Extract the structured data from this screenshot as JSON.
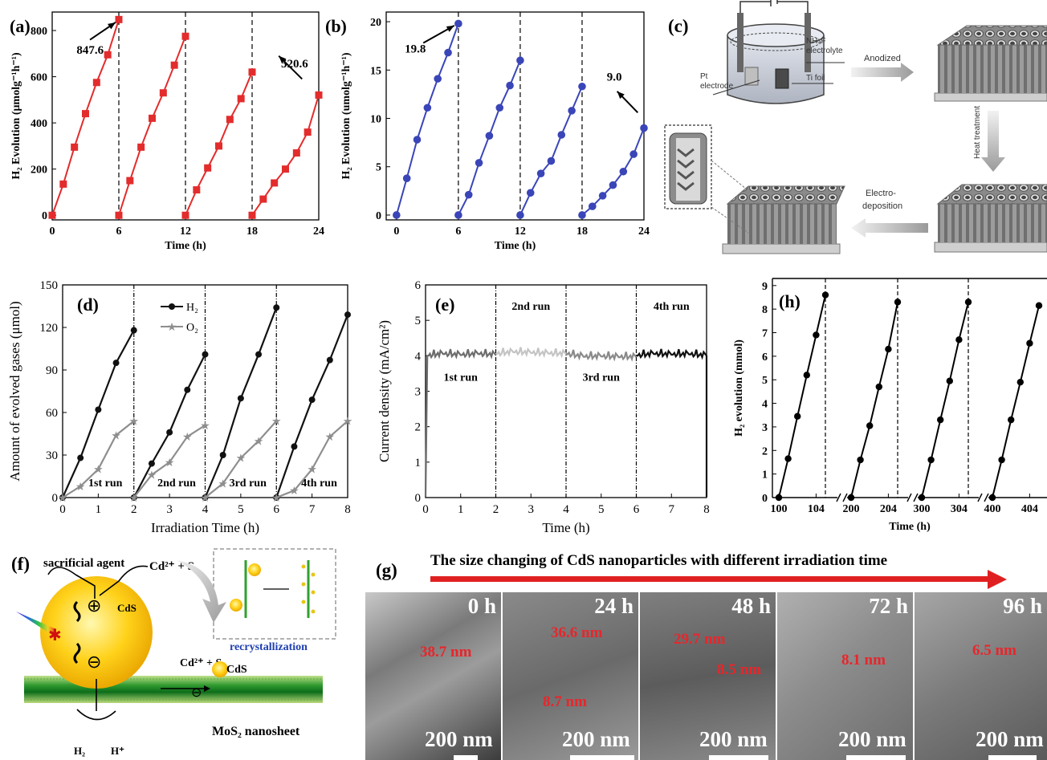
{
  "colors": {
    "red": "#e32c2c",
    "blue": "#3a45b8",
    "black": "#111111",
    "gray": "#8e8e8e",
    "arrow_red": "#e02020",
    "ink": "#000000"
  },
  "chart_data": [
    {
      "id": "a",
      "panel_label": "(a)",
      "type": "line",
      "xlabel": "Time (h)",
      "ylabel": "H₂ Evolution (μmolg⁻¹h⁻¹)",
      "xlim": [
        0,
        24
      ],
      "ylim": [
        -20,
        880
      ],
      "xticks": [
        "0",
        "6",
        "12",
        "18",
        "24"
      ],
      "yticks": [
        "0",
        "200",
        "400",
        "600",
        "800"
      ],
      "cycle_dividers": [
        6,
        12,
        18
      ],
      "marker": "square",
      "series": [
        {
          "values": [
            [
              0,
              0
            ],
            [
              1,
              135
            ],
            [
              2,
              295
            ],
            [
              3,
              440
            ],
            [
              4,
              575
            ],
            [
              5,
              695
            ],
            [
              6,
              847.6
            ]
          ]
        },
        {
          "values": [
            [
              6,
              0
            ],
            [
              7,
              150
            ],
            [
              8,
              295
            ],
            [
              9,
              420
            ],
            [
              10,
              530
            ],
            [
              11,
              650
            ],
            [
              12,
              775
            ]
          ]
        },
        {
          "values": [
            [
              12,
              0
            ],
            [
              13,
              110
            ],
            [
              14,
              205
            ],
            [
              15,
              300
            ],
            [
              16,
              415
            ],
            [
              17,
              505
            ],
            [
              18,
              620
            ]
          ]
        },
        {
          "values": [
            [
              18,
              0
            ],
            [
              19,
              70
            ],
            [
              20,
              140
            ],
            [
              21,
              200
            ],
            [
              22,
              270
            ],
            [
              23,
              360
            ],
            [
              24,
              520.6
            ]
          ]
        }
      ],
      "annotations": [
        {
          "text": "847.6",
          "x": 2.2,
          "y": 700,
          "arrow_to": [
            6,
            847.6
          ]
        },
        {
          "text": "520.6",
          "x": 20.6,
          "y": 640,
          "arrow_to": [
            24,
            520.6
          ]
        }
      ]
    },
    {
      "id": "b",
      "panel_label": "(b)",
      "type": "line",
      "xlabel": "Time (h)",
      "ylabel": "H₂ Evolution (umolg⁻¹h⁻¹)",
      "xlim": [
        -1,
        24
      ],
      "ylim": [
        -0.5,
        21
      ],
      "xticks": [
        "0",
        "6",
        "12",
        "18",
        "24"
      ],
      "yticks": [
        "0",
        "5",
        "10",
        "15",
        "20"
      ],
      "cycle_dividers": [
        6,
        12,
        18
      ],
      "marker": "circle",
      "series": [
        {
          "values": [
            [
              0,
              0
            ],
            [
              1,
              3.8
            ],
            [
              2,
              7.8
            ],
            [
              3,
              11.1
            ],
            [
              4,
              14.1
            ],
            [
              5,
              16.8
            ],
            [
              6,
              19.8
            ]
          ]
        },
        {
          "values": [
            [
              6,
              0
            ],
            [
              7,
              2.1
            ],
            [
              8,
              5.4
            ],
            [
              9,
              8.2
            ],
            [
              10,
              11.1
            ],
            [
              11,
              13.4
            ],
            [
              12,
              16.0
            ]
          ]
        },
        {
          "values": [
            [
              12,
              0
            ],
            [
              13,
              2.3
            ],
            [
              14,
              4.3
            ],
            [
              15,
              5.6
            ],
            [
              16,
              8.3
            ],
            [
              17,
              10.8
            ],
            [
              18,
              13.3
            ]
          ]
        },
        {
          "values": [
            [
              18,
              0
            ],
            [
              19,
              0.9
            ],
            [
              20,
              2.0
            ],
            [
              21,
              3.1
            ],
            [
              22,
              4.5
            ],
            [
              23,
              6.3
            ],
            [
              24,
              9.0
            ]
          ]
        }
      ],
      "annotations": [
        {
          "text": "19.8",
          "x": 0.8,
          "y": 16.8,
          "arrow_to": [
            6,
            19.8
          ]
        },
        {
          "text": "9.0",
          "x": 20.4,
          "y": 13.9,
          "arrow_to": [
            24,
            9.0
          ]
        }
      ]
    },
    {
      "id": "d",
      "panel_label": "(d)",
      "type": "line",
      "xlabel": "Irradiation Time (h)",
      "ylabel": "Amount of evolved gases  (μmol)",
      "xlim": [
        0,
        8
      ],
      "ylim": [
        0,
        150
      ],
      "xticks": [
        "0",
        "1",
        "2",
        "3",
        "4",
        "5",
        "6",
        "7",
        "8"
      ],
      "yticks": [
        "0",
        "30",
        "60",
        "90",
        "120",
        "150"
      ],
      "cycle_dividers": [
        2,
        4,
        6
      ],
      "legend": [
        "H₂",
        "O₂"
      ],
      "run_labels": [
        "1st run",
        "2nd run",
        "3rd run",
        "4th run"
      ],
      "series": [
        {
          "name": "H₂",
          "values": [
            [
              0,
              0
            ],
            [
              0.5,
              28
            ],
            [
              1,
              62
            ],
            [
              1.5,
              95
            ],
            [
              2,
              118
            ],
            [
              2,
              0
            ],
            [
              2.5,
              24
            ],
            [
              3,
              46
            ],
            [
              3.5,
              76
            ],
            [
              4,
              101
            ],
            [
              4,
              0
            ],
            [
              4.5,
              30
            ],
            [
              5,
              70
            ],
            [
              5.5,
              101
            ],
            [
              6,
              134
            ],
            [
              6,
              0
            ],
            [
              6.5,
              36
            ],
            [
              7,
              69
            ],
            [
              7.5,
              97
            ],
            [
              8,
              129
            ]
          ]
        },
        {
          "name": "O₂",
          "values": [
            [
              0,
              0
            ],
            [
              0.5,
              8
            ],
            [
              1,
              20
            ],
            [
              1.5,
              44
            ],
            [
              2,
              54
            ],
            [
              2,
              0
            ],
            [
              2.5,
              16
            ],
            [
              3,
              25
            ],
            [
              3.5,
              43
            ],
            [
              4,
              51
            ],
            [
              4,
              0
            ],
            [
              4.5,
              10
            ],
            [
              5,
              28
            ],
            [
              5.5,
              40
            ],
            [
              6,
              54
            ],
            [
              6,
              0
            ],
            [
              6.5,
              5
            ],
            [
              7,
              20
            ],
            [
              7.5,
              43
            ],
            [
              8,
              54
            ]
          ]
        }
      ]
    },
    {
      "id": "e",
      "panel_label": "(e)",
      "type": "line",
      "xlabel": "Time (h)",
      "ylabel": "Current density (mA/cm²)",
      "xlim": [
        0,
        8
      ],
      "ylim": [
        0,
        6
      ],
      "xticks": [
        "0",
        "1",
        "2",
        "3",
        "4",
        "5",
        "6",
        "7",
        "8"
      ],
      "yticks": [
        "0",
        "1",
        "2",
        "3",
        "4",
        "5",
        "6"
      ],
      "cycle_dividers": [
        2,
        4,
        6
      ],
      "run_labels": [
        "1st run",
        "2nd run",
        "3rd run",
        "4th run"
      ],
      "series": [
        {
          "values": [
            [
              0,
              0.02
            ],
            [
              0.05,
              4.0
            ],
            [
              0.5,
              4.05
            ],
            [
              1,
              4.02
            ],
            [
              1.5,
              4.05
            ],
            [
              2,
              4.02
            ]
          ]
        },
        {
          "values": [
            [
              2,
              4.05
            ],
            [
              2.5,
              4.1
            ],
            [
              3,
              4.08
            ],
            [
              3.5,
              4.06
            ],
            [
              4,
              4.05
            ]
          ]
        },
        {
          "values": [
            [
              4,
              4.05
            ],
            [
              4.5,
              3.97
            ],
            [
              5,
              3.98
            ],
            [
              5.5,
              3.96
            ],
            [
              6,
              3.96
            ]
          ]
        },
        {
          "values": [
            [
              6,
              4.0
            ],
            [
              6.5,
              4.05
            ],
            [
              7,
              4.03
            ],
            [
              7.5,
              4.04
            ],
            [
              8,
              4.0
            ],
            [
              8,
              0.02
            ]
          ]
        }
      ]
    },
    {
      "id": "h",
      "panel_label": "(h)",
      "type": "line",
      "xlabel": "Time (h)",
      "ylabel": "H₂ evolution (mmol)",
      "ylim": [
        0,
        9.3
      ],
      "xticks": [
        "100",
        "104",
        "200",
        "204",
        "300",
        "304",
        "400",
        "404"
      ],
      "yticks": [
        "0",
        "1",
        "2",
        "3",
        "4",
        "5",
        "6",
        "7",
        "8",
        "9"
      ],
      "axis_breaks": 3,
      "series": [
        {
          "values": [
            [
              100,
              0
            ],
            [
              101,
              1.65
            ],
            [
              102,
              3.45
            ],
            [
              103,
              5.2
            ],
            [
              104,
              6.9
            ],
            [
              105,
              8.6
            ]
          ]
        },
        {
          "values": [
            [
              200,
              0
            ],
            [
              201,
              1.6
            ],
            [
              202,
              3.05
            ],
            [
              203,
              4.7
            ],
            [
              204,
              6.3
            ],
            [
              205,
              8.3
            ]
          ]
        },
        {
          "values": [
            [
              300,
              0
            ],
            [
              301,
              1.6
            ],
            [
              302,
              3.3
            ],
            [
              303,
              4.95
            ],
            [
              304,
              6.7
            ],
            [
              305,
              8.3
            ]
          ]
        },
        {
          "values": [
            [
              400,
              0
            ],
            [
              401,
              1.6
            ],
            [
              402,
              3.3
            ],
            [
              403,
              4.9
            ],
            [
              404,
              6.55
            ],
            [
              405,
              8.15
            ]
          ]
        }
      ]
    }
  ],
  "panel_c": {
    "panel_label": "(c)",
    "labels": {
      "pt": "Pt",
      "electrode": "electrode",
      "nh4f": "NH₄F",
      "electrolyte": "electrolyte",
      "ti_foil": "Ti foil",
      "anodized": "Anodized",
      "heat": "Heat treatment",
      "electro": "Electro-",
      "deposition": "deposition"
    }
  },
  "panel_f": {
    "panel_label": "(f)",
    "labels": {
      "sacrificial": "sacrificial agent",
      "cd_s_top": "Cd²⁺ + S",
      "cds_left": "CdS",
      "recrys": "recrystallization",
      "cd_s_mid": "Cd²⁺ + S",
      "cds_right": "CdS",
      "mos2": "MoS₂ nanosheet",
      "h2": "H₂",
      "hplus": "H⁺",
      "plus": "⊕",
      "minus": "⊖"
    }
  },
  "panel_g": {
    "panel_label": "(g)",
    "title": "The size changing of CdS nanoparticles with different irradiation time",
    "tiles": [
      {
        "time": "0 h",
        "sizes": [
          "38.7 nm"
        ],
        "scale": "200 nm"
      },
      {
        "time": "24 h",
        "sizes": [
          "36.6 nm",
          "8.7 nm"
        ],
        "scale": "200 nm"
      },
      {
        "time": "48 h",
        "sizes": [
          "29.7 nm",
          "8.5 nm"
        ],
        "scale": "200 nm"
      },
      {
        "time": "72 h",
        "sizes": [
          "8.1 nm"
        ],
        "scale": "200 nm"
      },
      {
        "time": "96 h",
        "sizes": [
          "6.5 nm"
        ],
        "scale": "200 nm"
      }
    ]
  }
}
